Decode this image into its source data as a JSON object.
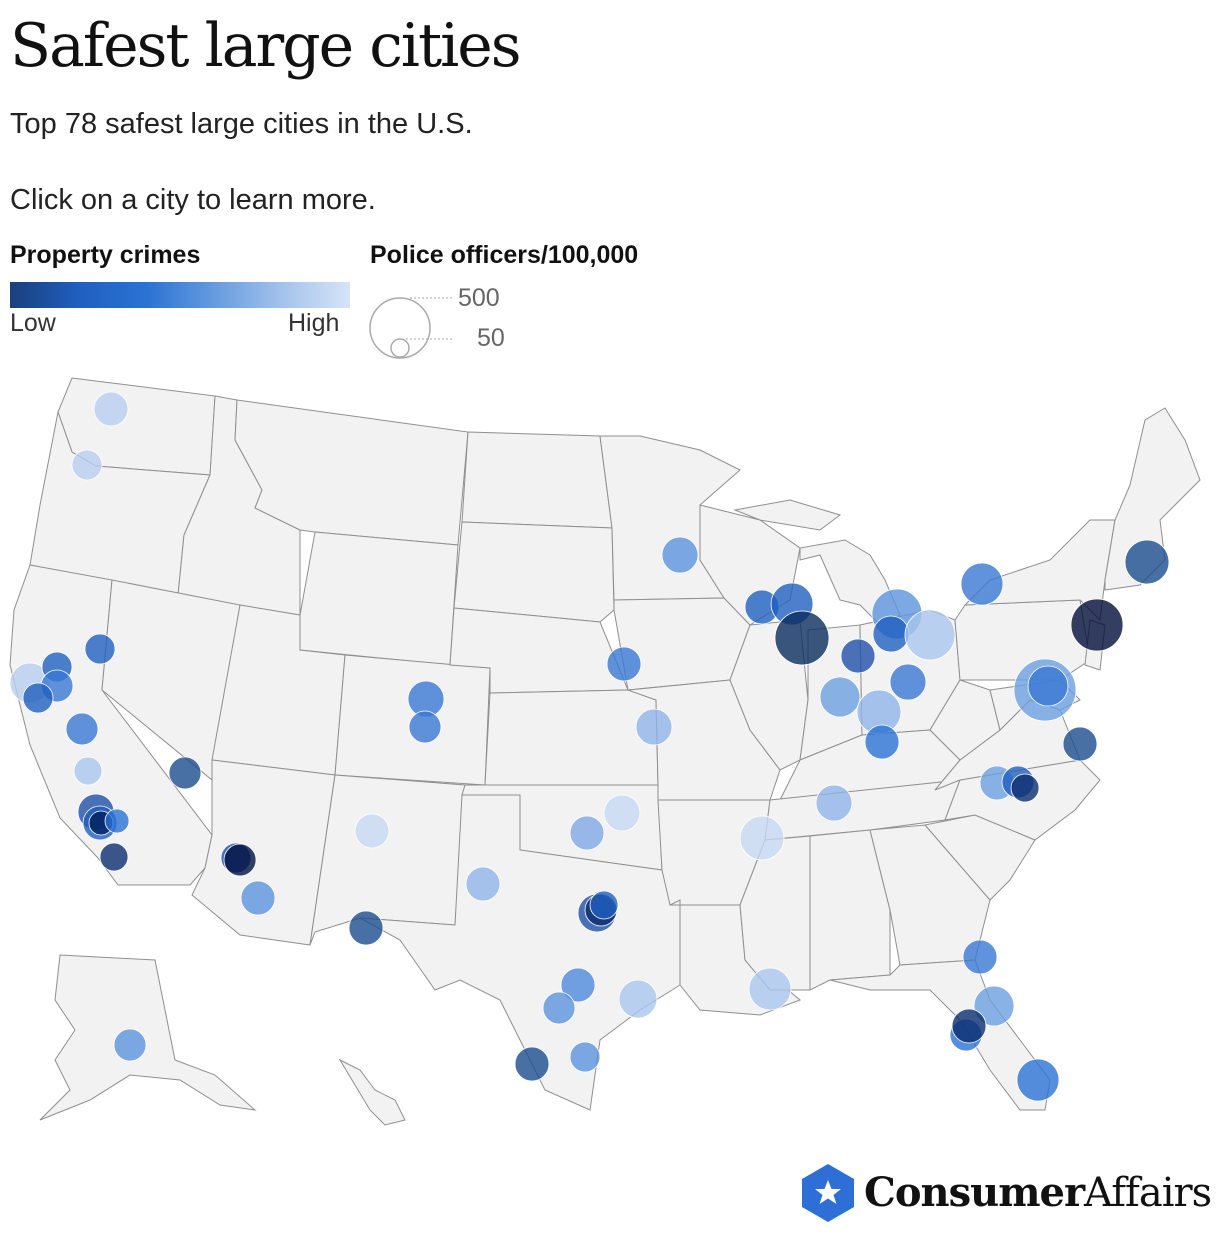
{
  "title": "Safest large cities",
  "subtitle": "Top 78 safest large cities in the U.S.",
  "instruction": "Click on a city to learn more.",
  "legend": {
    "color_title": "Property crimes",
    "color_low": "Low",
    "color_high": "High",
    "size_title": "Police officers/100,000",
    "size_large": "500",
    "size_small": "50",
    "gradient_colors": [
      "#1b3f7a",
      "#1f5fbf",
      "#2a72d4",
      "#6b9fe0",
      "#a9c6ee",
      "#d6e4f7"
    ]
  },
  "map": {
    "land_color": "#f2f2f2",
    "border_color": "#8f8f8f"
  },
  "brand": {
    "bold": "Consumer",
    "light": "Affairs",
    "icon": "star-hexagon-icon",
    "color": "#2d6fd6"
  }
}
